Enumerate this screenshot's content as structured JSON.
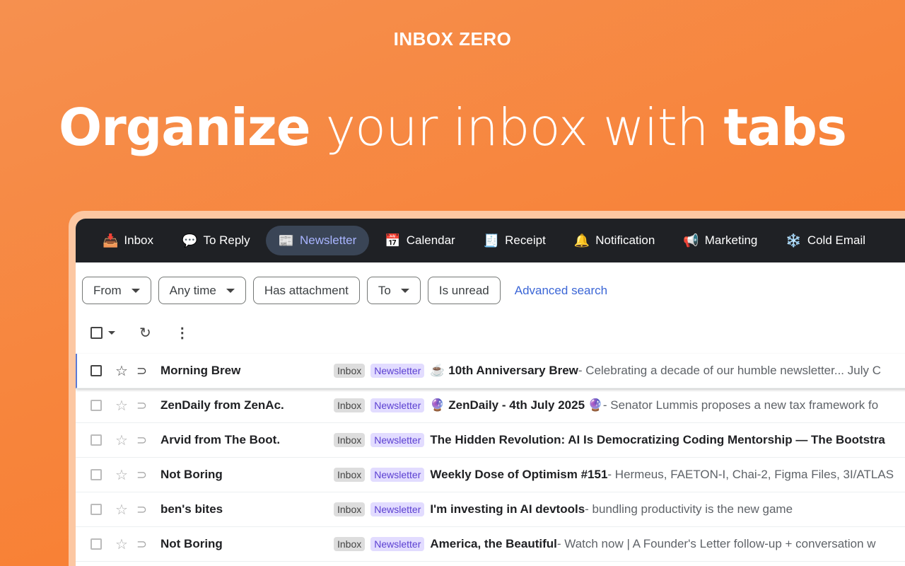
{
  "brand": "INBOX ZERO",
  "headline": {
    "part1": "Organize",
    "part2": " your inbox with ",
    "part3": "tabs"
  },
  "tabs": [
    {
      "icon": "📥",
      "label": "Inbox",
      "active": false
    },
    {
      "icon": "💬",
      "label": "To Reply",
      "active": false
    },
    {
      "icon": "📰",
      "label": "Newsletter",
      "active": true
    },
    {
      "icon": "📅",
      "label": "Calendar",
      "active": false
    },
    {
      "icon": "🧾",
      "label": "Receipt",
      "active": false
    },
    {
      "icon": "🔔",
      "label": "Notification",
      "active": false
    },
    {
      "icon": "📢",
      "label": "Marketing",
      "active": false
    },
    {
      "icon": "❄️",
      "label": "Cold Email",
      "active": false
    }
  ],
  "filters": {
    "from": "From",
    "any_time": "Any time",
    "has_attachment": "Has attachment",
    "to": "To",
    "is_unread": "Is unread",
    "advanced": "Advanced search"
  },
  "labels": {
    "inbox": "Inbox",
    "newsletter": "Newsletter"
  },
  "emails": [
    {
      "sender": "Morning Brew",
      "subject": "☕ 10th Anniversary Brew",
      "snippet": " - Celebrating a decade of our humble newsletter... July C"
    },
    {
      "sender": "ZenDaily from ZenAc.",
      "subject": "🔮 ZenDaily - 4th July 2025 🔮",
      "snippet": " - Senator Lummis proposes a new tax framework fo"
    },
    {
      "sender": "Arvid from The Boot.",
      "subject": "The Hidden Revolution: AI Is Democratizing Coding Mentorship — The Bootstra",
      "snippet": ""
    },
    {
      "sender": "Not Boring",
      "subject": "Weekly Dose of Optimism #151",
      "snippet": " - Hermeus, FAETON-I, Chai-2, Figma Files, 3I/ATLAS"
    },
    {
      "sender": "ben's bites",
      "subject": "I'm investing in AI devtools",
      "snippet": " - bundling productivity is the new game"
    },
    {
      "sender": "Not Boring",
      "subject": "America, the Beautiful",
      "snippet": " - Watch now | A Founder's Letter follow-up + conversation w"
    }
  ]
}
